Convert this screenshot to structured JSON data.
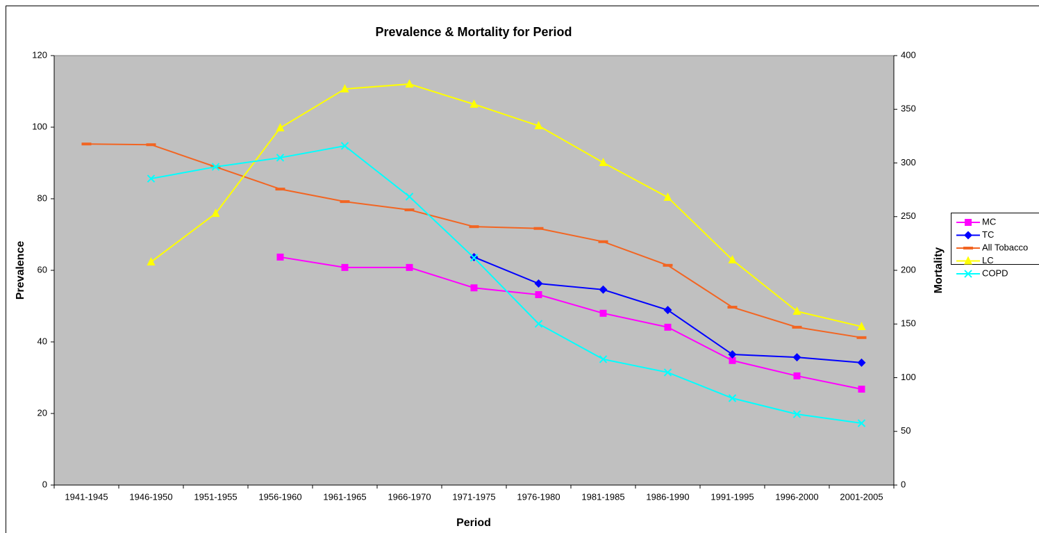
{
  "chart_data": {
    "type": "line",
    "title": "Prevalence & Mortality for Period",
    "x_label": "Period",
    "y_label": "Prevalence",
    "y2_label": "Mortality",
    "categories": [
      "1941-1945",
      "1946-1950",
      "1951-1955",
      "1956-1960",
      "1961-1965",
      "1966-1970",
      "1971-1975",
      "1976-1980",
      "1981-1985",
      "1986-1990",
      "1991-1995",
      "1996-2000",
      "2001-2005"
    ],
    "ylim": [
      0,
      120
    ],
    "yticks": [
      0,
      20,
      40,
      60,
      80,
      100,
      120
    ],
    "y2lim": [
      0,
      400
    ],
    "y2ticks": [
      0,
      50,
      100,
      150,
      200,
      250,
      300,
      350,
      400
    ],
    "legend": "right",
    "background": "#c0c0c0",
    "series": [
      {
        "name": "MC",
        "color": "#ff00ff",
        "marker": "square",
        "values": [
          null,
          null,
          null,
          63.7,
          60.8,
          60.8,
          55.1,
          53.2,
          48.0,
          44.1,
          34.8,
          30.5,
          26.8
        ]
      },
      {
        "name": "TC",
        "color": "#0000ff",
        "marker": "diamond",
        "values": [
          null,
          null,
          null,
          null,
          null,
          null,
          63.7,
          56.3,
          54.6,
          48.9,
          36.5,
          35.7,
          34.2
        ]
      },
      {
        "name": "All Tobacco",
        "color": "#f26522",
        "marker": "dash",
        "values": [
          95.3,
          95.1,
          88.9,
          82.7,
          79.2,
          76.9,
          72.2,
          71.7,
          68.0,
          61.4,
          49.7,
          44.1,
          41.2
        ]
      },
      {
        "name": "LC",
        "color": "#ffff00",
        "marker": "triangle",
        "axis": "y2",
        "values": [
          null,
          207.8,
          253,
          332.7,
          368.9,
          373.5,
          354.7,
          334.6,
          300.3,
          268,
          209.7,
          161.8,
          147.6
        ]
      },
      {
        "name": "COPD",
        "color": "#00ffff",
        "marker": "x",
        "axis": "y2",
        "values": [
          null,
          285.4,
          296.4,
          304.9,
          315.9,
          268.6,
          211.7,
          150.2,
          117.2,
          104.9,
          80.9,
          66,
          57.6
        ]
      }
    ]
  }
}
